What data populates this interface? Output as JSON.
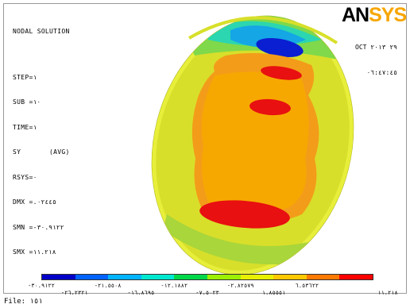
{
  "plot": {
    "title": "NODAL SOLUTION",
    "info_lines": [
      "STEP=١",
      "SUB =١٠",
      "TIME=١",
      "SY       (AVG)",
      "RSYS=٠",
      "DMX =.٠٢٤٤٥",
      "SMN =-٣٠.٩١٢٢",
      "SMX =١١.٢١٨"
    ],
    "date": "OCT ٢٩ ٢٠١٣",
    "time": "٠٦:٤٧:٤٥",
    "logo_left": "AN",
    "logo_right": "SYS"
  },
  "legend": {
    "colors": [
      "#0000c8",
      "#0062ff",
      "#00b4ff",
      "#00e8d0",
      "#00d84a",
      "#9cf000",
      "#e8f000",
      "#ffc800",
      "#ff7a00",
      "#ff0000"
    ],
    "labels_top": [
      "-٣٠.٩١٢٢",
      "-٢١.٥٥٠٨",
      "-١٢.١٨٨٢",
      "-٢.٨٢٥٧٩",
      "٦.٥٣٦٢٢"
    ],
    "labels_bottom": [
      "-٢٦.٢٣٢١",
      "-١٦.٨٦٩٥",
      "-٧.٥٠٢٣",
      "١.٨٥٥٥١",
      "١١.٢١٨"
    ]
  },
  "status": {
    "file_label": "File: ١٥١"
  }
}
